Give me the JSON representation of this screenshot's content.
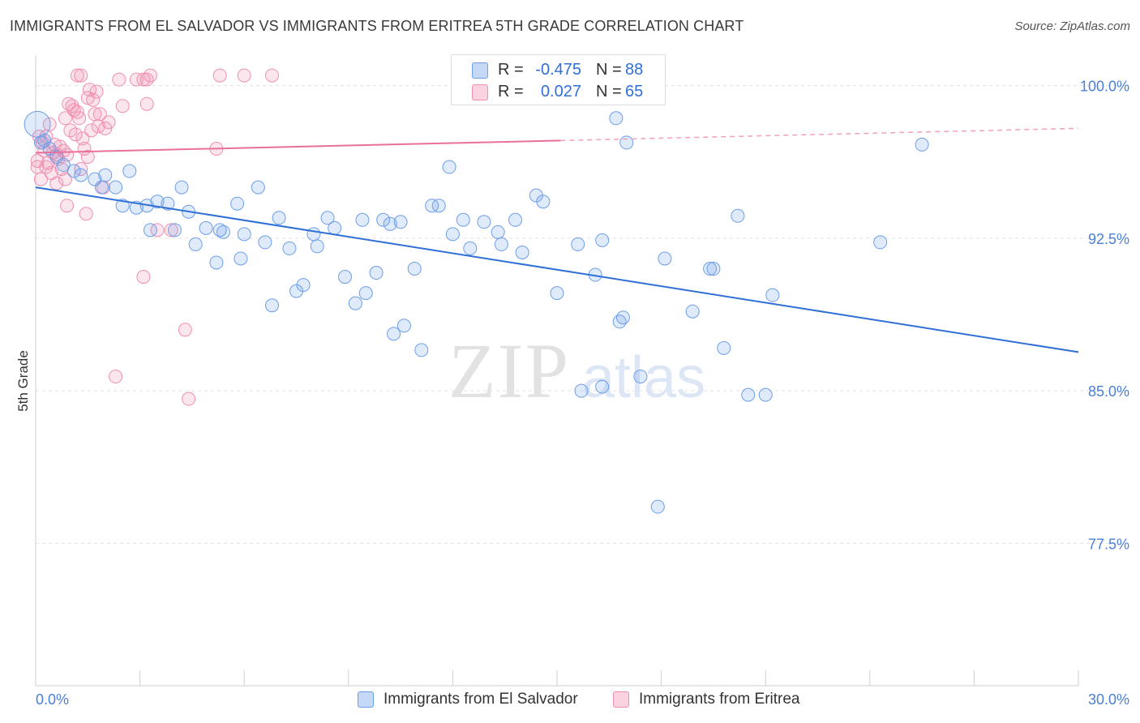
{
  "title": "IMMIGRANTS FROM EL SALVADOR VS IMMIGRANTS FROM ERITREA 5TH GRADE CORRELATION CHART",
  "source": "Source: ZipAtlas.com",
  "watermark": {
    "zip": "ZIP",
    "atlas": "atlas"
  },
  "stats": [
    {
      "r_label": "R =",
      "r_value": "-0.475",
      "n_label": "N =",
      "n_value": "88",
      "color": "#6d9ee8"
    },
    {
      "r_label": "R =",
      "r_value": "0.027",
      "n_label": "N =",
      "n_value": "65",
      "color": "#f08fb0"
    }
  ],
  "legend": [
    {
      "label": "Immigrants from El Salvador",
      "color": "#6d9ee8"
    },
    {
      "label": "Immigrants from Eritrea",
      "color": "#f08fb0"
    }
  ],
  "chart_data": {
    "type": "scatter",
    "title": "IMMIGRANTS FROM EL SALVADOR VS IMMIGRANTS FROM ERITREA 5TH GRADE CORRELATION CHART",
    "xlabel": "",
    "ylabel": "5th Grade",
    "xlim": [
      0,
      30
    ],
    "ylim": [
      70.5,
      101.5
    ],
    "x_tick_labels": [
      "0.0%",
      "30.0%"
    ],
    "y_tick_labels": [
      "77.5%",
      "85.0%",
      "92.5%",
      "100.0%"
    ],
    "y_ticks": [
      77.5,
      85.0,
      92.5,
      100.0
    ],
    "grid": true,
    "legend_position": "bottom-center",
    "series": [
      {
        "name": "Immigrants from El Salvador",
        "color": "#6d9ee8",
        "trend": {
          "x": [
            0,
            30
          ],
          "y": [
            95.0,
            86.9
          ],
          "style": "solid"
        },
        "points": [
          [
            0.05,
            98.1
          ],
          [
            0.15,
            97.2
          ],
          [
            0.25,
            97.3
          ],
          [
            0.4,
            96.9
          ],
          [
            0.6,
            96.5
          ],
          [
            0.8,
            96.1
          ],
          [
            1.1,
            95.8
          ],
          [
            1.3,
            95.6
          ],
          [
            1.7,
            95.4
          ],
          [
            1.9,
            95.0
          ],
          [
            2.0,
            95.6
          ],
          [
            2.3,
            95.0
          ],
          [
            2.7,
            95.8
          ],
          [
            2.5,
            94.1
          ],
          [
            2.9,
            94.0
          ],
          [
            3.2,
            94.1
          ],
          [
            3.5,
            94.3
          ],
          [
            3.8,
            94.2
          ],
          [
            4.2,
            95.0
          ],
          [
            4.4,
            93.8
          ],
          [
            3.3,
            92.9
          ],
          [
            4.0,
            92.9
          ],
          [
            4.6,
            92.2
          ],
          [
            4.9,
            93.0
          ],
          [
            5.2,
            91.3
          ],
          [
            5.3,
            92.9
          ],
          [
            5.4,
            92.8
          ],
          [
            5.8,
            94.2
          ],
          [
            6.0,
            92.7
          ],
          [
            5.9,
            91.5
          ],
          [
            6.4,
            95.0
          ],
          [
            6.6,
            92.3
          ],
          [
            7.0,
            93.5
          ],
          [
            7.3,
            92.0
          ],
          [
            6.8,
            89.2
          ],
          [
            7.5,
            89.9
          ],
          [
            7.7,
            90.2
          ],
          [
            8.0,
            92.7
          ],
          [
            8.1,
            92.1
          ],
          [
            8.4,
            93.5
          ],
          [
            8.6,
            93.0
          ],
          [
            8.9,
            90.6
          ],
          [
            9.2,
            89.3
          ],
          [
            9.4,
            93.4
          ],
          [
            9.5,
            89.8
          ],
          [
            9.8,
            90.8
          ],
          [
            10.0,
            93.4
          ],
          [
            10.2,
            93.2
          ],
          [
            10.5,
            93.3
          ],
          [
            10.3,
            87.8
          ],
          [
            10.6,
            88.2
          ],
          [
            10.9,
            91.0
          ],
          [
            11.1,
            87.0
          ],
          [
            11.4,
            94.1
          ],
          [
            11.6,
            94.1
          ],
          [
            11.9,
            96.0
          ],
          [
            12.0,
            92.7
          ],
          [
            12.3,
            93.4
          ],
          [
            12.5,
            92.0
          ],
          [
            12.9,
            93.3
          ],
          [
            13.3,
            92.8
          ],
          [
            13.4,
            92.2
          ],
          [
            13.8,
            93.4
          ],
          [
            13.6,
            99.9
          ],
          [
            14.0,
            91.8
          ],
          [
            14.4,
            94.6
          ],
          [
            14.6,
            94.3
          ],
          [
            15.0,
            89.8
          ],
          [
            15.6,
            92.2
          ],
          [
            15.7,
            85.0
          ],
          [
            16.1,
            90.7
          ],
          [
            16.3,
            92.4
          ],
          [
            16.3,
            85.2
          ],
          [
            16.7,
            98.4
          ],
          [
            16.8,
            88.4
          ],
          [
            16.9,
            88.6
          ],
          [
            17.0,
            97.2
          ],
          [
            17.4,
            85.7
          ],
          [
            18.1,
            91.5
          ],
          [
            17.9,
            79.3
          ],
          [
            18.9,
            88.9
          ],
          [
            19.4,
            91.0
          ],
          [
            19.5,
            91.0
          ],
          [
            19.8,
            87.1
          ],
          [
            20.2,
            93.6
          ],
          [
            20.5,
            84.8
          ],
          [
            21.0,
            84.8
          ],
          [
            21.2,
            89.7
          ],
          [
            24.3,
            92.3
          ],
          [
            25.5,
            97.1
          ]
        ]
      },
      {
        "name": "Immigrants from Eritrea",
        "color": "#f08fb0",
        "trend": {
          "x": [
            0,
            15.1
          ],
          "y": [
            96.7,
            97.3
          ],
          "style": "solid",
          "extension": {
            "x": [
              15.1,
              30
            ],
            "y": [
              97.3,
              97.9
            ],
            "style": "dashed"
          }
        },
        "points": [
          [
            0.05,
            96.3
          ],
          [
            0.05,
            96.0
          ],
          [
            0.1,
            97.5
          ],
          [
            0.15,
            95.4
          ],
          [
            0.2,
            97.2
          ],
          [
            0.25,
            96.8
          ],
          [
            0.3,
            97.5
          ],
          [
            0.35,
            96.2
          ],
          [
            0.4,
            98.1
          ],
          [
            0.45,
            95.7
          ],
          [
            0.5,
            96.7
          ],
          [
            0.55,
            97.1
          ],
          [
            0.6,
            95.2
          ],
          [
            0.65,
            96.4
          ],
          [
            0.7,
            97.0
          ],
          [
            0.75,
            95.9
          ],
          [
            0.8,
            96.8
          ],
          [
            0.85,
            98.4
          ],
          [
            0.85,
            95.4
          ],
          [
            0.9,
            96.6
          ],
          [
            0.9,
            94.1
          ],
          [
            0.95,
            99.1
          ],
          [
            1.0,
            97.8
          ],
          [
            1.05,
            99.0
          ],
          [
            1.1,
            98.8
          ],
          [
            1.15,
            97.6
          ],
          [
            1.2,
            98.7
          ],
          [
            1.25,
            98.4
          ],
          [
            1.3,
            95.9
          ],
          [
            1.35,
            97.4
          ],
          [
            1.4,
            96.9
          ],
          [
            1.45,
            93.7
          ],
          [
            1.5,
            99.4
          ],
          [
            1.55,
            99.8
          ],
          [
            1.6,
            97.8
          ],
          [
            1.65,
            99.3
          ],
          [
            1.7,
            98.6
          ],
          [
            1.75,
            99.7
          ],
          [
            1.8,
            98.0
          ],
          [
            1.85,
            98.6
          ],
          [
            1.95,
            95.0
          ],
          [
            2.0,
            97.9
          ],
          [
            2.1,
            98.2
          ],
          [
            1.3,
            100.5
          ],
          [
            1.2,
            100.5
          ],
          [
            2.4,
            100.3
          ],
          [
            2.9,
            100.3
          ],
          [
            3.2,
            100.3
          ],
          [
            3.1,
            100.3
          ],
          [
            3.2,
            99.1
          ],
          [
            3.3,
            100.5
          ],
          [
            3.1,
            90.6
          ],
          [
            3.5,
            92.9
          ],
          [
            3.9,
            92.9
          ],
          [
            4.3,
            88.0
          ],
          [
            4.4,
            84.6
          ],
          [
            5.2,
            96.9
          ],
          [
            5.3,
            100.5
          ],
          [
            6.0,
            100.5
          ],
          [
            6.8,
            100.5
          ],
          [
            2.3,
            85.7
          ],
          [
            0.6,
            96.6
          ],
          [
            1.5,
            96.5
          ],
          [
            0.3,
            96.0
          ],
          [
            2.5,
            99.0
          ]
        ]
      }
    ]
  }
}
